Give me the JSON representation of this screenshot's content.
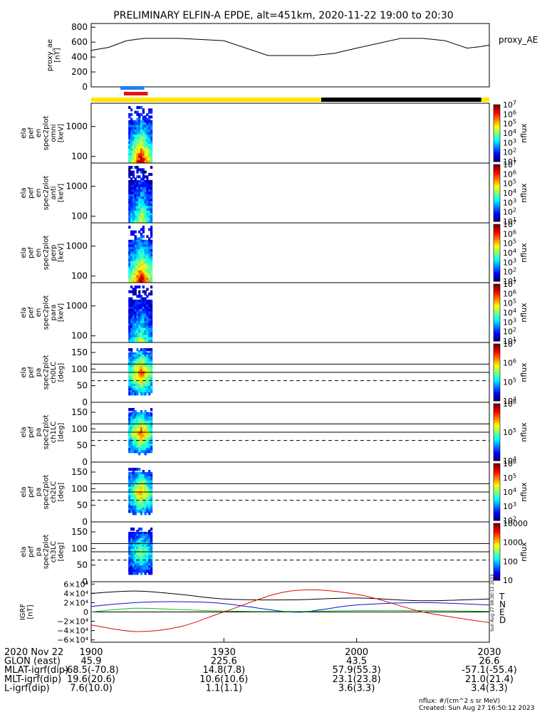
{
  "colors": {
    "yellow": "#ffe600",
    "black": "#000000",
    "blue_marker": "#1e7ff0",
    "red_marker": "#e81010",
    "grf_T": "#000000",
    "grf_N": "#1010d0",
    "grf_E": "#10c010",
    "grf_D": "#d01010"
  },
  "chart_data": {
    "type": "heatmap",
    "title": "PRELIMINARY ELFIN-A EPDE, alt=451km, 2020-11-22 19:00 to 20:30",
    "time_range_minutes": [
      0,
      90
    ],
    "proxy_ae": {
      "ylabel": [
        "proxy_ae",
        "[nT]"
      ],
      "legend": "proxy_AE",
      "yticks": [
        "800",
        "600",
        "400",
        "200",
        "0"
      ],
      "ytick_values": [
        800,
        600,
        400,
        200,
        0
      ],
      "ylim": [
        0,
        850
      ],
      "t": [
        0,
        4,
        8,
        12,
        16,
        20,
        30,
        40,
        45,
        50,
        55,
        60,
        70,
        75,
        80,
        85,
        88,
        90
      ],
      "values": [
        490,
        530,
        620,
        650,
        650,
        650,
        620,
        420,
        420,
        420,
        450,
        520,
        650,
        650,
        620,
        520,
        540,
        560
      ]
    },
    "markers": [
      {
        "color": "blue_marker",
        "t0": 6.6,
        "t1": 12.0
      },
      {
        "color": "red_marker",
        "t0": 7.4,
        "t1": 12.8
      }
    ],
    "status_bar": [
      {
        "color": "yellow",
        "t0": 0,
        "t1": 52
      },
      {
        "color": "black",
        "t0": 52,
        "t1": 88.2
      },
      {
        "color": "yellow",
        "t0": 88.2,
        "t1": 90
      }
    ],
    "energy_panels": [
      {
        "ylabel": [
          "ela",
          "pef",
          "en",
          "spec2plot",
          "omni",
          "[keV]"
        ],
        "yticks": [
          "1000",
          "100"
        ],
        "intensity": 1.0
      },
      {
        "ylabel": [
          "ela",
          "pef",
          "en",
          "spec2plot",
          "anti",
          "[keV]"
        ],
        "yticks": [
          "1000",
          "100"
        ],
        "intensity": 0.6
      },
      {
        "ylabel": [
          "ela",
          "pef",
          "en",
          "spec2plot",
          "perp",
          "[keV]"
        ],
        "yticks": [
          "1000",
          "100"
        ],
        "intensity": 1.0
      },
      {
        "ylabel": [
          "ela",
          "pef",
          "en",
          "spec2plot",
          "para",
          "[keV]"
        ],
        "yticks": [
          "1000",
          "100"
        ],
        "intensity": 0.55
      }
    ],
    "energy_range_keV": [
      60,
      6000
    ],
    "pitch_panels": [
      {
        "ylabel": [
          "ela",
          "pef",
          "pa",
          "spec2plot",
          "ch0LC",
          "[deg]"
        ],
        "yticks": [
          "150",
          "100",
          "50",
          "0"
        ],
        "intensity": 0.85
      },
      {
        "ylabel": [
          "ela",
          "pef",
          "pa",
          "spec2plot",
          "ch1LC",
          "[deg]"
        ],
        "yticks": [
          "150",
          "100",
          "50",
          "0"
        ],
        "intensity": 0.8
      },
      {
        "ylabel": [
          "ela",
          "pef",
          "pa",
          "spec2plot",
          "ch2LC",
          "[deg]"
        ],
        "yticks": [
          "150",
          "100",
          "50",
          "0"
        ],
        "intensity": 0.75
      },
      {
        "ylabel": [
          "ela",
          "pef",
          "pa",
          "spec2plot",
          "ch3LC",
          "[deg]"
        ],
        "yticks": [
          "150",
          "100",
          "50",
          "0"
        ],
        "intensity": 0.55
      }
    ],
    "pitch_range_deg": [
      0,
      180
    ],
    "pitch_solid_lines_deg": [
      115,
      90
    ],
    "pitch_dashed_line_deg": 65,
    "colorbars": [
      {
        "label": "nflux",
        "ticks": [
          "10^1",
          "10^2",
          "10^3",
          "10^4",
          "10^5",
          "10^6",
          "10^7"
        ]
      },
      {
        "label": "nflux",
        "ticks": [
          "10^1",
          "10^2",
          "10^3",
          "10^4",
          "10^5",
          "10^6",
          "10^7"
        ]
      },
      {
        "label": "nflux",
        "ticks": [
          "10^1",
          "10^2",
          "10^3",
          "10^4",
          "10^5",
          "10^6",
          "10^7"
        ]
      },
      {
        "label": "nflux",
        "ticks": [
          "10^1",
          "10^2",
          "10^3",
          "10^4",
          "10^5",
          "10^6",
          "10^7"
        ]
      },
      {
        "label": "nflux",
        "ticks": [
          "10^4",
          "10^5",
          "10^6",
          "10^7"
        ]
      },
      {
        "label": "nflux",
        "ticks": [
          "10^4",
          "10^5",
          "10^6"
        ]
      },
      {
        "label": "nflux",
        "ticks": [
          "10^2",
          "10^3",
          "10^4",
          "10^5",
          "10^6"
        ]
      },
      {
        "label": "nflux",
        "ticks": [
          "10",
          "100",
          "1000",
          "10000"
        ]
      }
    ],
    "grf": {
      "ylabel": [
        "IGRF",
        "[nT]"
      ],
      "yticks": [
        "6×10⁴",
        "4×10⁴",
        "2×10⁴",
        "0",
        "−2×10⁴",
        "−4×10⁴",
        "−6×10⁴"
      ],
      "ytick_values": [
        60000,
        40000,
        20000,
        0,
        -20000,
        -40000,
        -60000
      ],
      "ylim": [
        -65000,
        65000
      ],
      "side_stamp": "Sun Aug 27 08:30:12 2023",
      "series": [
        {
          "name": "T",
          "color": "grf_T",
          "t": [
            0,
            10,
            20,
            30,
            45,
            60,
            75,
            90
          ],
          "values": [
            40000,
            45000,
            38000,
            28000,
            26000,
            30000,
            24000,
            28000
          ]
        },
        {
          "name": "N",
          "color": "grf_N",
          "t": [
            0,
            10,
            20,
            30,
            45,
            52,
            60,
            75,
            90
          ],
          "values": [
            12000,
            20000,
            22000,
            18000,
            0,
            5000,
            15000,
            20000,
            15000
          ]
        },
        {
          "name": "E",
          "color": "grf_E",
          "t": [
            0,
            10,
            20,
            30,
            45,
            60,
            75,
            90
          ],
          "values": [
            0,
            8000,
            5000,
            2000,
            1000,
            3000,
            3000,
            1000
          ]
        },
        {
          "name": "D",
          "color": "grf_D",
          "t": [
            0,
            10,
            20,
            30,
            45,
            60,
            75,
            90
          ],
          "values": [
            -28000,
            -42000,
            -32000,
            0,
            45000,
            38000,
            0,
            -23000
          ]
        }
      ]
    },
    "time_ticks": [
      {
        "t": 0,
        "label": "1900"
      },
      {
        "t": 30,
        "label": "1930"
      },
      {
        "t": 60,
        "label": "2000"
      },
      {
        "t": 90,
        "label": "2030"
      }
    ],
    "ephemeris_rows": [
      {
        "label": "2020 Nov 22",
        "vals": [
          "",
          "",
          "",
          ""
        ]
      },
      {
        "label": "GLON (east)",
        "vals": [
          "45.9",
          "225.6",
          "43.5",
          "26.6"
        ]
      },
      {
        "label": "MLAT-igrf(dip)",
        "vals": [
          "-68.5(-70.8)",
          "14.8(7.8)",
          "57.9(55.3)",
          "-57.1(-55.4)"
        ]
      },
      {
        "label": "MLT-igrf(dip)",
        "vals": [
          "19.6(20.6)",
          "10.6(10.6)",
          "23.1(23.8)",
          "21.0(21.4)"
        ]
      },
      {
        "label": "L-igrf(dip)",
        "vals": [
          "7.6(10.0)",
          "1.1(1.1)",
          "3.6(3.3)",
          "3.4(3.3)"
        ]
      }
    ],
    "footer": {
      "units": "nflux: #/(cm^2 s sr MeV)",
      "created": "Created: Sun Aug 27 16:50:12 2023"
    }
  }
}
